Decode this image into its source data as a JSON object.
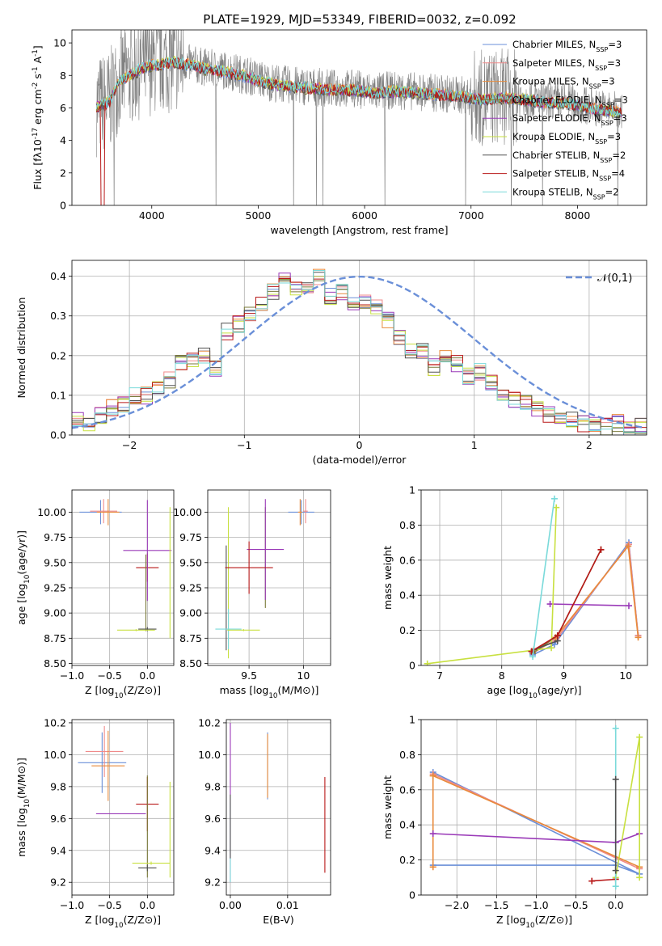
{
  "figure_title": "PLATE=1929, MJD=53349, FIBERID=0032, z=0.092",
  "series_names": [
    "Chabrier MILES, N$_{SSP}$=3",
    "Salpeter MILES, N$_{SSP}$=3",
    "Kroupa MILES, N$_{SSP}$=3",
    "Chabrier ELODIE, N$_{SSP}$=3",
    "Salpeter ELODIE, N$_{SSP}$=3",
    "Kroupa ELODIE, N$_{SSP}$=3",
    "Chabrier STELIB, N$_{SSP}$=2",
    "Salpeter STELIB, N$_{SSP}$=4",
    "Kroupa STELIB, N$_{SSP}$=2"
  ],
  "series_colors": [
    "#6a8fd8",
    "#f08a8a",
    "#e88a3a",
    "#7a7a3a",
    "#9a3ab8",
    "#c8e040",
    "#505050",
    "#b81818",
    "#7adada"
  ],
  "chart_data": [
    {
      "id": "spectrum",
      "type": "line",
      "xlabel": "wavelength [Angstrom, rest frame]",
      "ylabel": "Flux [f$_\\lambda$10$^{-17}$ erg cm$^{-2}$ s$^{-1}$ A$^{-1}$]",
      "xlim": [
        3250,
        8650
      ],
      "ylim": [
        0,
        10.8
      ],
      "xticks": [
        4000,
        5000,
        6000,
        7000,
        8000
      ],
      "yticks": [
        0,
        2,
        4,
        6,
        8,
        10
      ],
      "continuum_x": [
        3500,
        3600,
        3700,
        3800,
        3900,
        4000,
        4100,
        4200,
        4300,
        4500,
        4700,
        4900,
        5100,
        5300,
        5500,
        5700,
        5900,
        6100,
        6300,
        6500,
        6700,
        6900,
        7100,
        7300,
        7500,
        7700,
        7900,
        8100,
        8300,
        8400
      ],
      "continuum_y": [
        6.2,
        6.4,
        7.8,
        8.1,
        8.5,
        8.7,
        8.8,
        8.9,
        8.8,
        8.5,
        8.3,
        8.0,
        7.6,
        7.4,
        7.3,
        7.2,
        7.2,
        7.0,
        7.1,
        7.0,
        6.9,
        6.8,
        6.6,
        6.7,
        6.6,
        6.4,
        6.4,
        6.1,
        5.9,
        5.8
      ],
      "grid": false
    },
    {
      "id": "residual_histogram",
      "type": "histogram",
      "xlabel": "(data-model)/error",
      "ylabel": "Normed distribution",
      "xlim": [
        -2.5,
        2.5
      ],
      "ylim": [
        0,
        0.44
      ],
      "xticks": [
        -2,
        -1,
        0,
        1,
        2
      ],
      "yticks": [
        0.0,
        0.1,
        0.2,
        0.3,
        0.4
      ],
      "bin_edges_start": -2.5,
      "bin_width": 0.1,
      "reference_values": [
        0.02,
        0.03,
        0.04,
        0.06,
        0.08,
        0.1,
        0.12,
        0.15,
        0.18,
        0.22,
        0.25,
        0.29,
        0.33,
        0.37,
        0.4,
        0.4,
        0.37,
        0.33,
        0.29,
        0.25,
        0.22,
        0.18,
        0.15,
        0.12,
        0.1,
        0.08,
        0.06,
        0.04,
        0.03,
        0.02
      ],
      "bin_values": [
        0.04,
        0.03,
        0.05,
        0.07,
        0.08,
        0.1,
        0.1,
        0.12,
        0.14,
        0.18,
        0.19,
        0.2,
        0.17,
        0.26,
        0.28,
        0.3,
        0.33,
        0.36,
        0.39,
        0.37,
        0.38,
        0.4,
        0.35,
        0.36,
        0.33,
        0.34,
        0.32,
        0.29,
        0.25,
        0.21,
        0.21,
        0.17,
        0.2,
        0.18,
        0.15,
        0.16,
        0.13,
        0.1,
        0.09,
        0.08,
        0.07,
        0.05,
        0.04,
        0.04,
        0.03,
        0.03,
        0.02,
        0.03,
        0.02,
        0.02
      ],
      "fit_label": "$\\mathcal{N}(0,1)$",
      "fit_color": "#6a8fd8",
      "grid": true
    },
    {
      "id": "age_vs_Z",
      "type": "scatter",
      "xlabel": "Z [log$_{10}$(Z/Z$_\\odot$)]",
      "ylabel": "age  [log$_{10}$(age/yr)]",
      "xlim": [
        -1.0,
        0.35
      ],
      "ylim": [
        8.48,
        10.22
      ],
      "xticks": [
        -1.0,
        -0.5,
        0.0
      ],
      "yticks": [
        8.5,
        8.75,
        9.0,
        9.25,
        9.5,
        9.75,
        10.0
      ],
      "xticklabels": [
        "−1.0",
        "−0.5",
        "0.0"
      ],
      "yticklabels": [
        "8.50",
        "8.75",
        "9.00",
        "9.25",
        "9.50",
        "9.75",
        "10.00"
      ],
      "points": [
        {
          "x": -0.62,
          "y": 10.0,
          "xerr": 0.28,
          "yerr": 0.12,
          "s": 0
        },
        {
          "x": -0.58,
          "y": 10.01,
          "xerr": 0.18,
          "yerr": 0.12,
          "s": 1
        },
        {
          "x": -0.52,
          "y": 10.0,
          "xerr": 0.15,
          "yerr": 0.13,
          "s": 2
        },
        {
          "x": 0.0,
          "y": 9.45,
          "xerr": 0.15,
          "yerr": 0.14,
          "s": 7
        },
        {
          "x": -0.02,
          "y": 9.2,
          "xerr": 0.0,
          "yerr": 0.38,
          "s": 3
        },
        {
          "x": 0.0,
          "y": 9.62,
          "xerr": 0.32,
          "yerr": 0.5,
          "s": 4
        },
        {
          "x": 0.3,
          "y": 9.4,
          "xerr": 0.0,
          "yerr": 0.65,
          "s": 5
        },
        {
          "x": 0.0,
          "y": 8.84,
          "xerr": 0.12,
          "yerr": 0.02,
          "s": 6
        },
        {
          "x": -0.15,
          "y": 8.83,
          "xerr": 0.25,
          "yerr": 0.01,
          "s": 5
        }
      ],
      "grid": true
    },
    {
      "id": "age_vs_mass",
      "type": "scatter",
      "xlabel": "mass [log$_{10}$(M/M$_\\odot$)]",
      "ylabel": "",
      "xlim": [
        9.12,
        10.25
      ],
      "ylim": [
        8.48,
        10.22
      ],
      "xticks": [
        9.5,
        10.0
      ],
      "yticks": [
        8.5,
        8.75,
        9.0,
        9.25,
        9.5,
        9.75,
        10.0
      ],
      "yticklabels": [
        "8.50",
        "8.75",
        "9.00",
        "9.25",
        "9.50",
        "9.75",
        "10.00"
      ],
      "points": [
        {
          "x": 9.98,
          "y": 10.0,
          "xerr": 0.12,
          "yerr": 0.12,
          "s": 0
        },
        {
          "x": 10.02,
          "y": 10.01,
          "xerr": 0.02,
          "yerr": 0.12,
          "s": 1
        },
        {
          "x": 9.97,
          "y": 10.0,
          "xerr": 0.02,
          "yerr": 0.13,
          "s": 2
        },
        {
          "x": 9.65,
          "y": 9.55,
          "xerr": 0.0,
          "yerr": 0.5,
          "s": 3
        },
        {
          "x": 9.65,
          "y": 9.63,
          "xerr": 0.17,
          "yerr": 0.5,
          "s": 4
        },
        {
          "x": 9.31,
          "y": 9.3,
          "xerr": 0.0,
          "yerr": 0.75,
          "s": 5
        },
        {
          "x": 9.29,
          "y": 9.15,
          "xerr": 0.0,
          "yerr": 0.52,
          "s": 6
        },
        {
          "x": 9.5,
          "y": 9.45,
          "xerr": 0.22,
          "yerr": 0.26,
          "s": 7
        },
        {
          "x": 9.31,
          "y": 8.84,
          "xerr": 0.12,
          "yerr": 0.2,
          "s": 8
        },
        {
          "x": 9.45,
          "y": 8.83,
          "xerr": 0.15,
          "yerr": 0.01,
          "s": 5
        }
      ],
      "grid": true
    },
    {
      "id": "weight_vs_age",
      "type": "line",
      "xlabel": "age  [log$_{10}$(age/yr)]",
      "ylabel": "mass weight",
      "xlim": [
        6.7,
        10.35
      ],
      "ylim": [
        0.0,
        1.0
      ],
      "xticks": [
        7,
        8,
        9,
        10
      ],
      "yticks": [
        0.0,
        0.2,
        0.4,
        0.6,
        0.8,
        1.0
      ],
      "series": [
        {
          "s": 0,
          "x": [
            8.5,
            8.85,
            10.05,
            10.2
          ],
          "y": [
            0.06,
            0.12,
            0.7,
            0.17
          ]
        },
        {
          "s": 1,
          "x": [
            8.5,
            8.88,
            10.05,
            10.2
          ],
          "y": [
            0.07,
            0.15,
            0.69,
            0.17
          ]
        },
        {
          "s": 2,
          "x": [
            8.5,
            8.87,
            10.04,
            10.2
          ],
          "y": [
            0.08,
            0.16,
            0.68,
            0.16
          ]
        },
        {
          "s": 3,
          "x": [
            8.5,
            8.9,
            9.6
          ],
          "y": [
            0.07,
            0.17,
            0.66
          ]
        },
        {
          "s": 4,
          "x": [
            8.78,
            10.05
          ],
          "y": [
            0.35,
            0.34
          ]
        },
        {
          "s": 5,
          "x": [
            6.8,
            8.8,
            8.88
          ],
          "y": [
            0.01,
            0.1,
            0.9
          ]
        },
        {
          "s": 6,
          "x": [
            8.52,
            8.9
          ],
          "y": [
            0.09,
            0.14
          ]
        },
        {
          "s": 7,
          "x": [
            8.48,
            8.9,
            9.6
          ],
          "y": [
            0.08,
            0.17,
            0.66
          ]
        },
        {
          "s": 8,
          "x": [
            8.5,
            8.85
          ],
          "y": [
            0.05,
            0.95
          ]
        }
      ],
      "grid": true
    },
    {
      "id": "mass_vs_Z",
      "type": "scatter",
      "xlabel": "Z [log$_{10}$(Z/Z$_\\odot$)]",
      "ylabel": "mass [log$_{10}$(M/M$_\\odot$)]",
      "xlim": [
        -1.0,
        0.35
      ],
      "ylim": [
        9.12,
        10.22
      ],
      "xticks": [
        -1.0,
        -0.5,
        0.0
      ],
      "yticks": [
        9.2,
        9.4,
        9.6,
        9.8,
        10.0,
        10.2
      ],
      "xticklabels": [
        "−1.0",
        "−0.5",
        "0.0"
      ],
      "yticklabels": [
        "9.2",
        "9.4",
        "9.6",
        "9.8",
        "10.0",
        "10.2"
      ],
      "points": [
        {
          "x": -0.6,
          "y": 9.95,
          "xerr": 0.32,
          "yerr": 0.19,
          "s": 0
        },
        {
          "x": -0.57,
          "y": 10.02,
          "xerr": 0.25,
          "yerr": 0.16,
          "s": 1
        },
        {
          "x": -0.52,
          "y": 9.93,
          "xerr": 0.22,
          "yerr": 0.22,
          "s": 2
        },
        {
          "x": 0.0,
          "y": 9.69,
          "xerr": 0.15,
          "yerr": 0.17,
          "s": 7
        },
        {
          "x": 0.0,
          "y": 9.55,
          "xerr": 0.0,
          "yerr": 0.32,
          "s": 3
        },
        {
          "x": -0.35,
          "y": 9.63,
          "xerr": 0.33,
          "yerr": 0.0,
          "s": 4
        },
        {
          "x": 0.3,
          "y": 9.53,
          "xerr": 0.0,
          "yerr": 0.3,
          "s": 5
        },
        {
          "x": 0.0,
          "y": 9.29,
          "xerr": 0.12,
          "yerr": 0.02,
          "s": 6
        },
        {
          "x": 0.05,
          "y": 9.32,
          "xerr": 0.25,
          "yerr": 0.01,
          "s": 5
        }
      ],
      "grid": true
    },
    {
      "id": "mass_vs_ebv",
      "type": "scatter",
      "xlabel": "E(B-V)",
      "ylabel": "",
      "xlim": [
        -0.0007,
        0.0175
      ],
      "ylim": [
        9.12,
        10.22
      ],
      "xticks": [
        0.0,
        0.01
      ],
      "yticks": [
        9.2,
        9.4,
        9.6,
        9.8,
        10.0,
        10.2
      ],
      "xticklabels": [
        "0.00",
        "0.01"
      ],
      "yticklabels": [
        "9.2",
        "9.4",
        "9.6",
        "9.8",
        "10.0",
        "10.2"
      ],
      "points": [
        {
          "x": 0.0,
          "y": 9.7,
          "xerr": 0.0,
          "yerr": 0.5,
          "s": 4
        },
        {
          "x": 0.0,
          "y": 9.45,
          "xerr": 0.0,
          "yerr": 0.25,
          "s": 8
        },
        {
          "x": 0.0,
          "y": 9.55,
          "xerr": 0.0,
          "yerr": 0.2,
          "s": 6
        },
        {
          "x": 0.0065,
          "y": 9.93,
          "xerr": 0.0,
          "yerr": 0.21,
          "s": 0
        },
        {
          "x": 0.0065,
          "y": 9.93,
          "xerr": 0.0,
          "yerr": 0.2,
          "s": 2
        },
        {
          "x": 0.0165,
          "y": 9.56,
          "xerr": 0.0,
          "yerr": 0.3,
          "s": 7
        }
      ],
      "grid": true
    },
    {
      "id": "weight_vs_Z",
      "type": "line",
      "xlabel": "Z [log$_{10}$(Z/Z$_\\odot$)]",
      "ylabel": "mass weight",
      "xlim": [
        -2.45,
        0.4
      ],
      "ylim": [
        0.0,
        1.0
      ],
      "xticks": [
        -2.0,
        -1.5,
        -1.0,
        -0.5,
        0.0
      ],
      "yticks": [
        0.0,
        0.2,
        0.4,
        0.6,
        0.8,
        1.0
      ],
      "xticklabels": [
        "−2.0",
        "−1.5",
        "−1.0",
        "−0.5",
        "0.0"
      ],
      "series": [
        {
          "s": 0,
          "x": [
            -2.3,
            0.3,
            0.0,
            -2.3
          ],
          "y": [
            0.7,
            0.12,
            0.17,
            0.17
          ]
        },
        {
          "s": 1,
          "x": [
            -2.3,
            0.3
          ],
          "y": [
            0.69,
            0.15
          ]
        },
        {
          "s": 2,
          "x": [
            -2.3,
            0.3,
            -2.3,
            -2.3
          ],
          "y": [
            0.68,
            0.16,
            0.68,
            0.16
          ]
        },
        {
          "s": 4,
          "x": [
            -2.3,
            0.0,
            0.3
          ],
          "y": [
            0.35,
            0.3,
            0.35
          ]
        },
        {
          "s": 5,
          "x": [
            0.0,
            0.3,
            0.3
          ],
          "y": [
            0.1,
            0.9,
            0.1
          ]
        },
        {
          "s": 7,
          "x": [
            -0.3,
            0.0
          ],
          "y": [
            0.08,
            0.09
          ]
        },
        {
          "s": 8,
          "x": [
            0.0,
            0.0
          ],
          "y": [
            0.95,
            0.05
          ]
        },
        {
          "s": 6,
          "x": [
            0.0,
            0.0
          ],
          "y": [
            0.66,
            0.14
          ]
        }
      ],
      "grid": true
    }
  ]
}
